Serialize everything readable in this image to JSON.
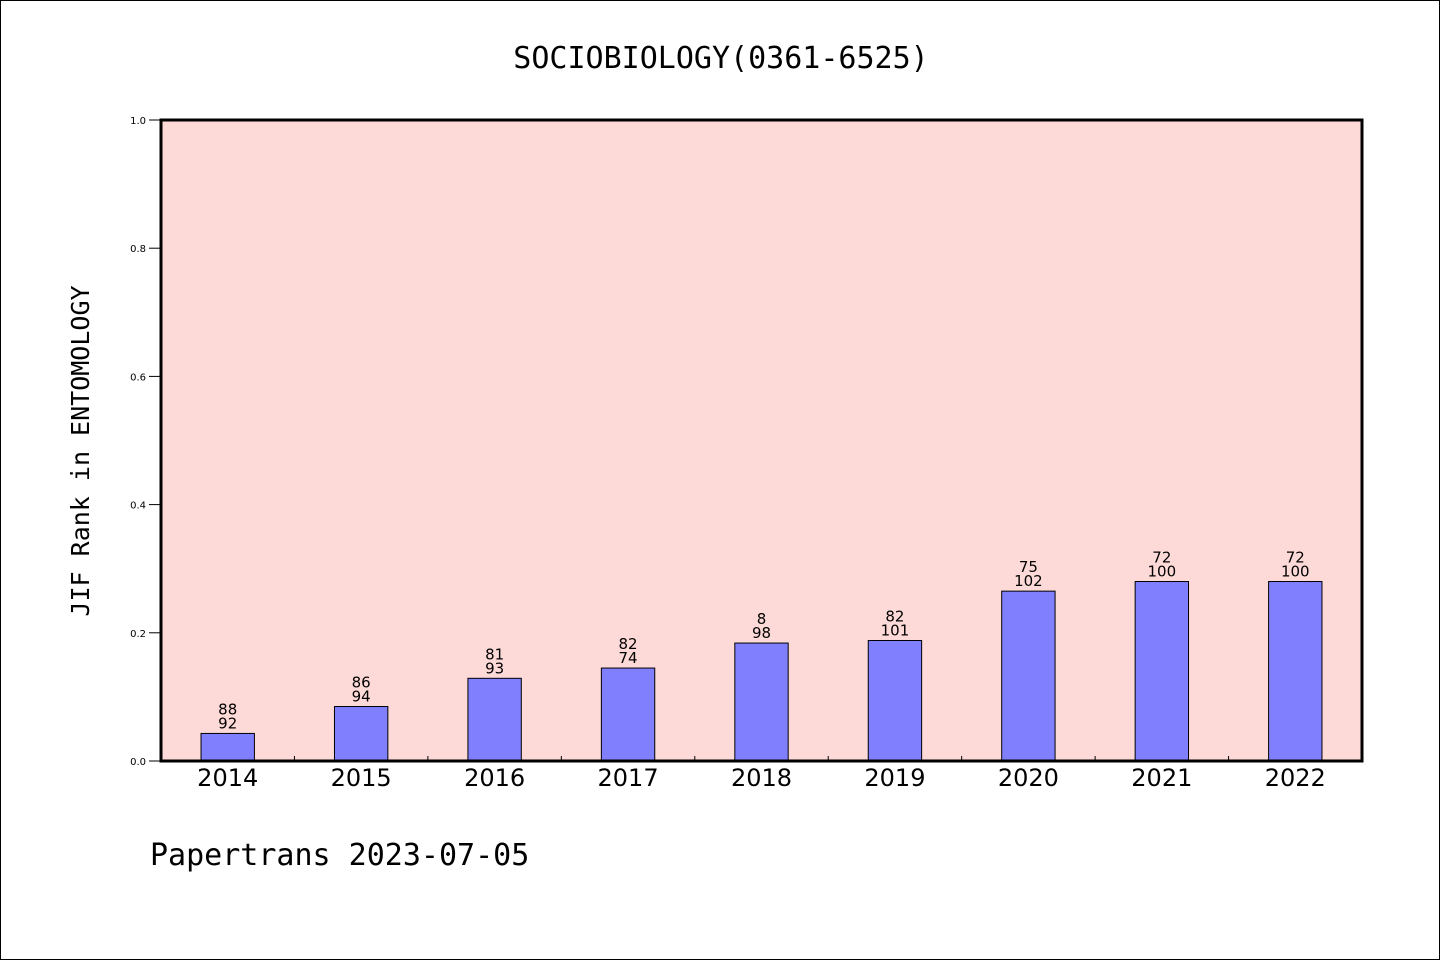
{
  "chart_data": {
    "type": "bar",
    "title": "SOCIOBIOLOGY(0361-6525)",
    "xlabel": "",
    "ylabel": "JIF Rank in ENTOMOLOGY",
    "categories": [
      "2014",
      "2015",
      "2016",
      "2017",
      "2018",
      "2019",
      "2020",
      "2021",
      "2022"
    ],
    "values": [
      0.043,
      0.085,
      0.129,
      0.145,
      0.184,
      0.188,
      0.265,
      0.28,
      0.28
    ],
    "label_top": [
      "88",
      "86",
      "81",
      "82",
      "8",
      "82",
      "75",
      "72",
      "72"
    ],
    "label_bottom": [
      "92",
      "94",
      "93",
      "74",
      "98",
      "101",
      "102",
      "100",
      "100"
    ],
    "ylim": [
      0.0,
      1.0
    ],
    "yticks": [
      "0.0",
      "0.2",
      "0.4",
      "0.6",
      "0.8",
      "1.0"
    ],
    "grid": false,
    "colors": {
      "plot_bg": "#fddad7",
      "bar": "#8080ff",
      "bar_edge": "#000000"
    }
  },
  "footer": {
    "text": "Papertrans 2023-07-05"
  }
}
